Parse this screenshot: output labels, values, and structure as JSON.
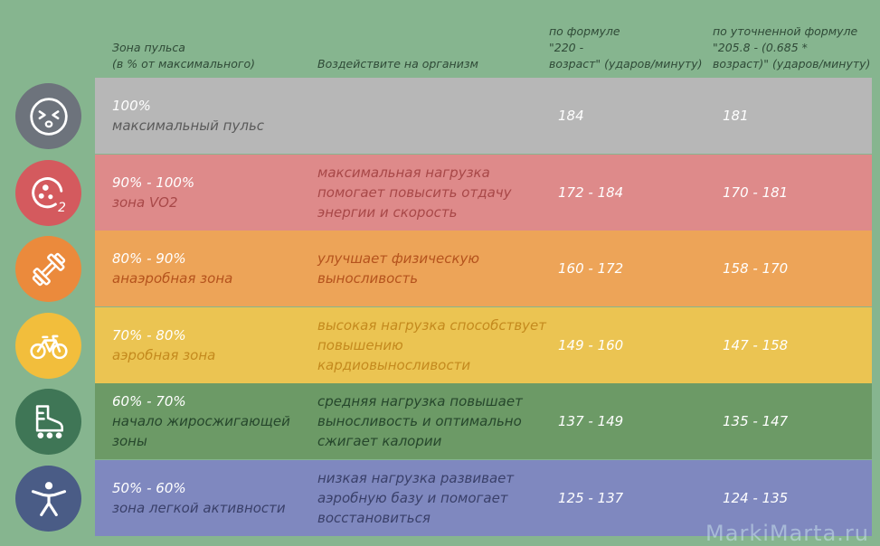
{
  "header": {
    "zone": "Зона пульса\n(в % от максимального)",
    "effect": "Воздействите на организм",
    "formula1": "по формуле\n\"220 -\nвозраст\" (ударов/минуту)",
    "formula2": "по уточненной формуле\n\"205.8 - (0.685 *\nвозраст)\" (ударов/минуту)"
  },
  "rows": [
    {
      "percent": "100%",
      "zone": "максимальный пульс",
      "effect": "",
      "formula1": "184",
      "formula2": "181",
      "icon": "exhausted-face-icon",
      "row_color": "#b7b7b7",
      "circle_color": "#6d737c",
      "text_color": "#5b5b5b"
    },
    {
      "percent": "90% - 100%",
      "zone": "зона VO2",
      "effect": "максимальная нагрузка помогает повысить отдачу энергии и скорость",
      "formula1": "172 - 184",
      "formula2": "170 - 181",
      "icon": "oxygen-o2-icon",
      "row_color": "#de8a8a",
      "circle_color": "#d45a5e",
      "text_color": "#a84848"
    },
    {
      "percent": "80% - 90%",
      "zone": "анаэробная зона",
      "effect": "улучшает физическую выносливость",
      "formula1": "160 - 172",
      "formula2": "158 - 170",
      "icon": "dumbbell-icon",
      "row_color": "#eda458",
      "circle_color": "#eb8a3c",
      "text_color": "#b5531d"
    },
    {
      "percent": "70% - 80%",
      "zone": "аэробная зона",
      "effect": "высокая нагрузка способствует повышению кардиовыносливости",
      "formula1": "149 - 160",
      "formula2": "147 - 158",
      "icon": "bicycle-icon",
      "row_color": "#ebc452",
      "circle_color": "#f2be3c",
      "text_color": "#c48a1e"
    },
    {
      "percent": "60% - 70%",
      "zone": "начало жиросжигающей зоны",
      "effect": "средняя нагрузка повышает выносливость и оптимально сжигает калории",
      "formula1": "137 - 149",
      "formula2": "135 - 147",
      "icon": "roller-skate-icon",
      "row_color": "#6c9a66",
      "circle_color": "#3f7656",
      "text_color": "#26472c"
    },
    {
      "percent": "50% - 60%",
      "zone": "зона легкой активности",
      "effect": "низкая нагрузка развивает аэробную базу и помогает восстановиться",
      "formula1": "125 - 137",
      "formula2": "124 - 135",
      "icon": "stretching-person-icon",
      "row_color": "#7f88bf",
      "circle_color": "#4a5c86",
      "text_color": "#3a406a"
    }
  ],
  "watermark": "MarkiMarta.ru"
}
